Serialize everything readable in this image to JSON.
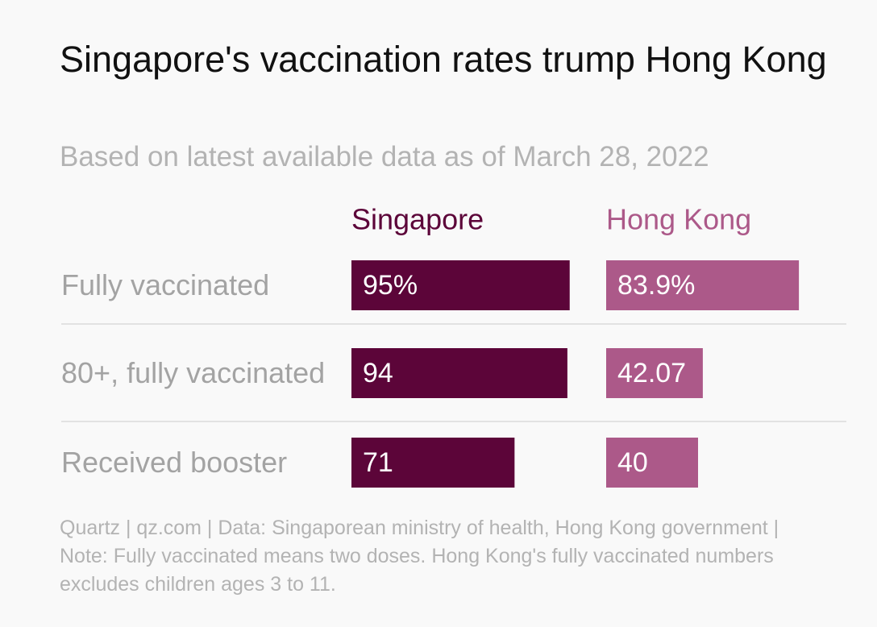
{
  "chart_data": {
    "type": "bar",
    "orientation": "horizontal",
    "title": "Singapore's vaccination rates trump Hong Kong",
    "subtitle": "Based on latest available data as of March 28, 2022",
    "categories": [
      "Fully vaccinated",
      "80+, fully vaccinated",
      "Received booster"
    ],
    "series": [
      {
        "name": "Singapore",
        "color": "#5c0539",
        "values": [
          95,
          94,
          71
        ],
        "value_labels": [
          "95%",
          "94",
          "71"
        ]
      },
      {
        "name": "Hong Kong",
        "color": "#ac5989",
        "values": [
          83.9,
          42.07,
          40
        ],
        "value_labels": [
          "83.9%",
          "42.07",
          "40"
        ]
      }
    ],
    "xlim": [
      0,
      100
    ],
    "source": "Quartz | qz.com | Data: Singaporean ministry of health, Hong Kong government | Note: Fully vaccinated means two doses. Hong Kong's fully vaccinated numbers excludes children ages 3 to 11."
  }
}
